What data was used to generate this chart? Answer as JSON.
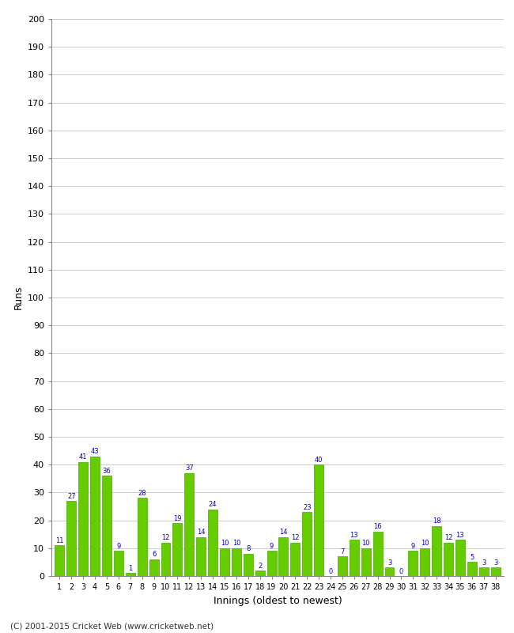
{
  "innings": [
    1,
    2,
    3,
    4,
    5,
    6,
    7,
    8,
    9,
    10,
    11,
    12,
    13,
    14,
    15,
    16,
    17,
    18,
    19,
    20,
    21,
    22,
    23,
    24,
    25,
    26,
    27,
    28,
    29,
    30,
    31,
    32,
    33,
    34,
    35,
    36,
    37,
    38
  ],
  "runs": [
    11,
    27,
    41,
    43,
    36,
    9,
    1,
    28,
    6,
    12,
    19,
    37,
    14,
    24,
    10,
    10,
    8,
    2,
    9,
    14,
    12,
    23,
    40,
    0,
    7,
    13,
    10,
    16,
    3,
    0,
    9,
    10,
    18,
    12,
    13,
    5,
    3,
    3
  ],
  "bar_color": "#66cc00",
  "bar_edge_color": "#44aa00",
  "label_color": "#0000cc",
  "bg_color": "#ffffff",
  "plot_bg_color": "#ffffff",
  "grid_color": "#cccccc",
  "xlabel": "Innings (oldest to newest)",
  "ylabel": "Runs",
  "ylim": [
    0,
    200
  ],
  "yticks": [
    0,
    10,
    20,
    30,
    40,
    50,
    60,
    70,
    80,
    90,
    100,
    110,
    120,
    130,
    140,
    150,
    160,
    170,
    180,
    190,
    200
  ],
  "copyright": "(C) 2001-2015 Cricket Web (www.cricketweb.net)"
}
